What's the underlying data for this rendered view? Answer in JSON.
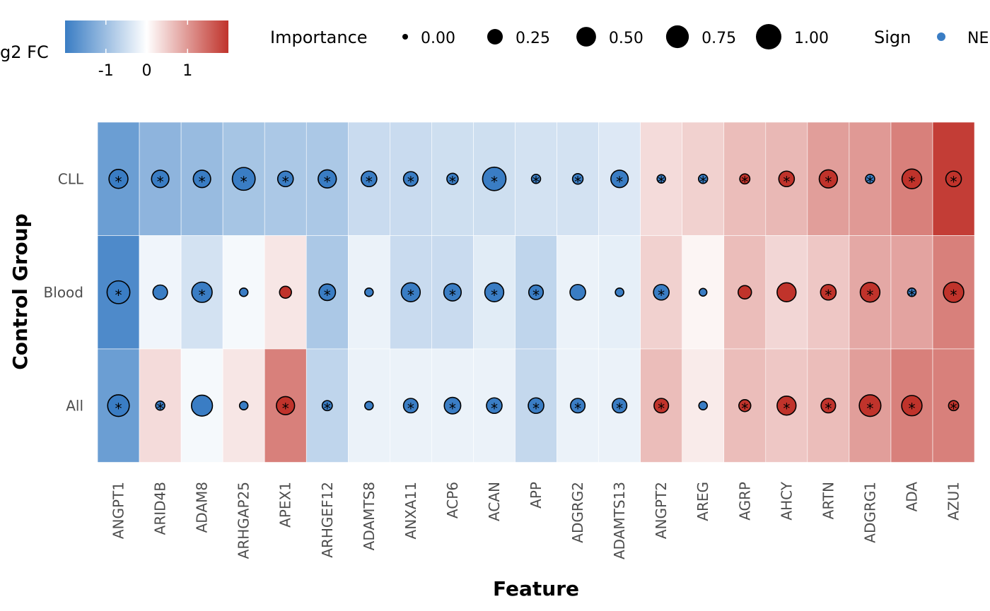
{
  "chart_data": {
    "type": "heatmap",
    "xlabel": "Feature",
    "ylabel": "Control Group",
    "features": [
      "ANGPT1",
      "ARID4B",
      "ADAM8",
      "ARHGAP25",
      "APEX1",
      "ARHGEF12",
      "ADAMTS8",
      "ANXA11",
      "ACP6",
      "ACAN",
      "APP",
      "ADGRG2",
      "ADAMTS13",
      "ANGPT2",
      "AREG",
      "AGRP",
      "AHCY",
      "ARTN",
      "ADGRG1",
      "ADA",
      "AZU1"
    ],
    "groups": [
      "CLL",
      "Blood",
      "All"
    ],
    "log2fc": [
      [
        -1.5,
        -1.15,
        -1.05,
        -0.9,
        -0.85,
        -0.85,
        -0.55,
        -0.55,
        -0.5,
        -0.5,
        -0.45,
        -0.45,
        -0.35,
        0.35,
        0.45,
        0.65,
        0.7,
        0.95,
        1.0,
        1.25,
        1.9
      ],
      [
        -1.8,
        -0.15,
        -0.45,
        -0.1,
        0.25,
        -0.85,
        -0.2,
        -0.55,
        -0.55,
        -0.3,
        -0.65,
        -0.2,
        -0.25,
        0.45,
        0.1,
        0.65,
        0.4,
        0.55,
        0.85,
        0.9,
        1.25
      ],
      [
        -1.5,
        0.35,
        -0.1,
        0.25,
        1.25,
        -0.65,
        -0.2,
        -0.2,
        -0.2,
        -0.2,
        -0.6,
        -0.2,
        -0.2,
        0.65,
        0.2,
        0.65,
        0.55,
        0.65,
        0.95,
        1.25,
        1.25
      ]
    ],
    "importance": [
      [
        0.45,
        0.35,
        0.35,
        0.75,
        0.25,
        0.4,
        0.25,
        0.2,
        0.08,
        0.8,
        0.03,
        0.06,
        0.35,
        0.02,
        0.03,
        0.05,
        0.25,
        0.4,
        0.03,
        0.5,
        0.25
      ],
      [
        0.75,
        0.2,
        0.55,
        0.02,
        0.1,
        0.3,
        0.02,
        0.45,
        0.35,
        0.45,
        0.2,
        0.25,
        0.02,
        0.25,
        0.01,
        0.15,
        0.45,
        0.25,
        0.5,
        0.02,
        0.55
      ],
      [
        0.65,
        0.03,
        0.6,
        0.02,
        0.4,
        0.05,
        0.02,
        0.2,
        0.3,
        0.25,
        0.25,
        0.2,
        0.2,
        0.2,
        0.02,
        0.1,
        0.45,
        0.2,
        0.65,
        0.55,
        0.05
      ]
    ],
    "sign": [
      [
        "NEG",
        "NEG",
        "NEG",
        "NEG",
        "NEG",
        "NEG",
        "NEG",
        "NEG",
        "NEG",
        "NEG",
        "NEG",
        "NEG",
        "NEG",
        "NEG",
        "NEG",
        "POS",
        "POS",
        "POS",
        "NEG",
        "POS",
        "POS"
      ],
      [
        "NEG",
        "NEG",
        "NEG",
        "NEG",
        "POS",
        "NEG",
        "NEG",
        "NEG",
        "NEG",
        "NEG",
        "NEG",
        "NEG",
        "NEG",
        "NEG",
        "NEG",
        "POS",
        "POS",
        "POS",
        "POS",
        "NEG",
        "POS"
      ],
      [
        "NEG",
        "NEG",
        "NEG",
        "NEG",
        "POS",
        "NEG",
        "NEG",
        "NEG",
        "NEG",
        "NEG",
        "NEG",
        "NEG",
        "NEG",
        "POS",
        "NEG",
        "POS",
        "POS",
        "POS",
        "POS",
        "POS",
        "POS"
      ]
    ],
    "significant": [
      [
        true,
        true,
        true,
        true,
        true,
        true,
        true,
        true,
        true,
        true,
        true,
        true,
        true,
        true,
        true,
        true,
        true,
        true,
        true,
        true,
        true
      ],
      [
        true,
        false,
        true,
        false,
        false,
        true,
        false,
        true,
        true,
        true,
        true,
        false,
        false,
        true,
        false,
        false,
        false,
        true,
        true,
        true,
        true
      ],
      [
        true,
        true,
        false,
        false,
        true,
        true,
        false,
        true,
        true,
        true,
        true,
        true,
        true,
        true,
        false,
        true,
        true,
        true,
        true,
        true,
        true
      ]
    ],
    "colorbar": {
      "title": "g2 FC",
      "ticks": [
        "-1",
        "0",
        "1"
      ],
      "tick_values": [
        -1,
        0,
        1
      ],
      "range": [
        -2,
        2
      ],
      "low_color": "#3a7dc4",
      "mid_color": "#ffffff",
      "high_color": "#c0332b"
    },
    "size_legend": {
      "title": "Importance",
      "labels": [
        "0.00",
        "0.25",
        "0.50",
        "0.75",
        "1.00"
      ],
      "values": [
        0,
        0.25,
        0.5,
        0.75,
        1
      ]
    },
    "sign_legend": {
      "title": "Sign",
      "label": "NE",
      "color": "#3a7dc4"
    },
    "neg_color": "#3a7dc4",
    "pos_color": "#c0332b",
    "star": "*"
  }
}
